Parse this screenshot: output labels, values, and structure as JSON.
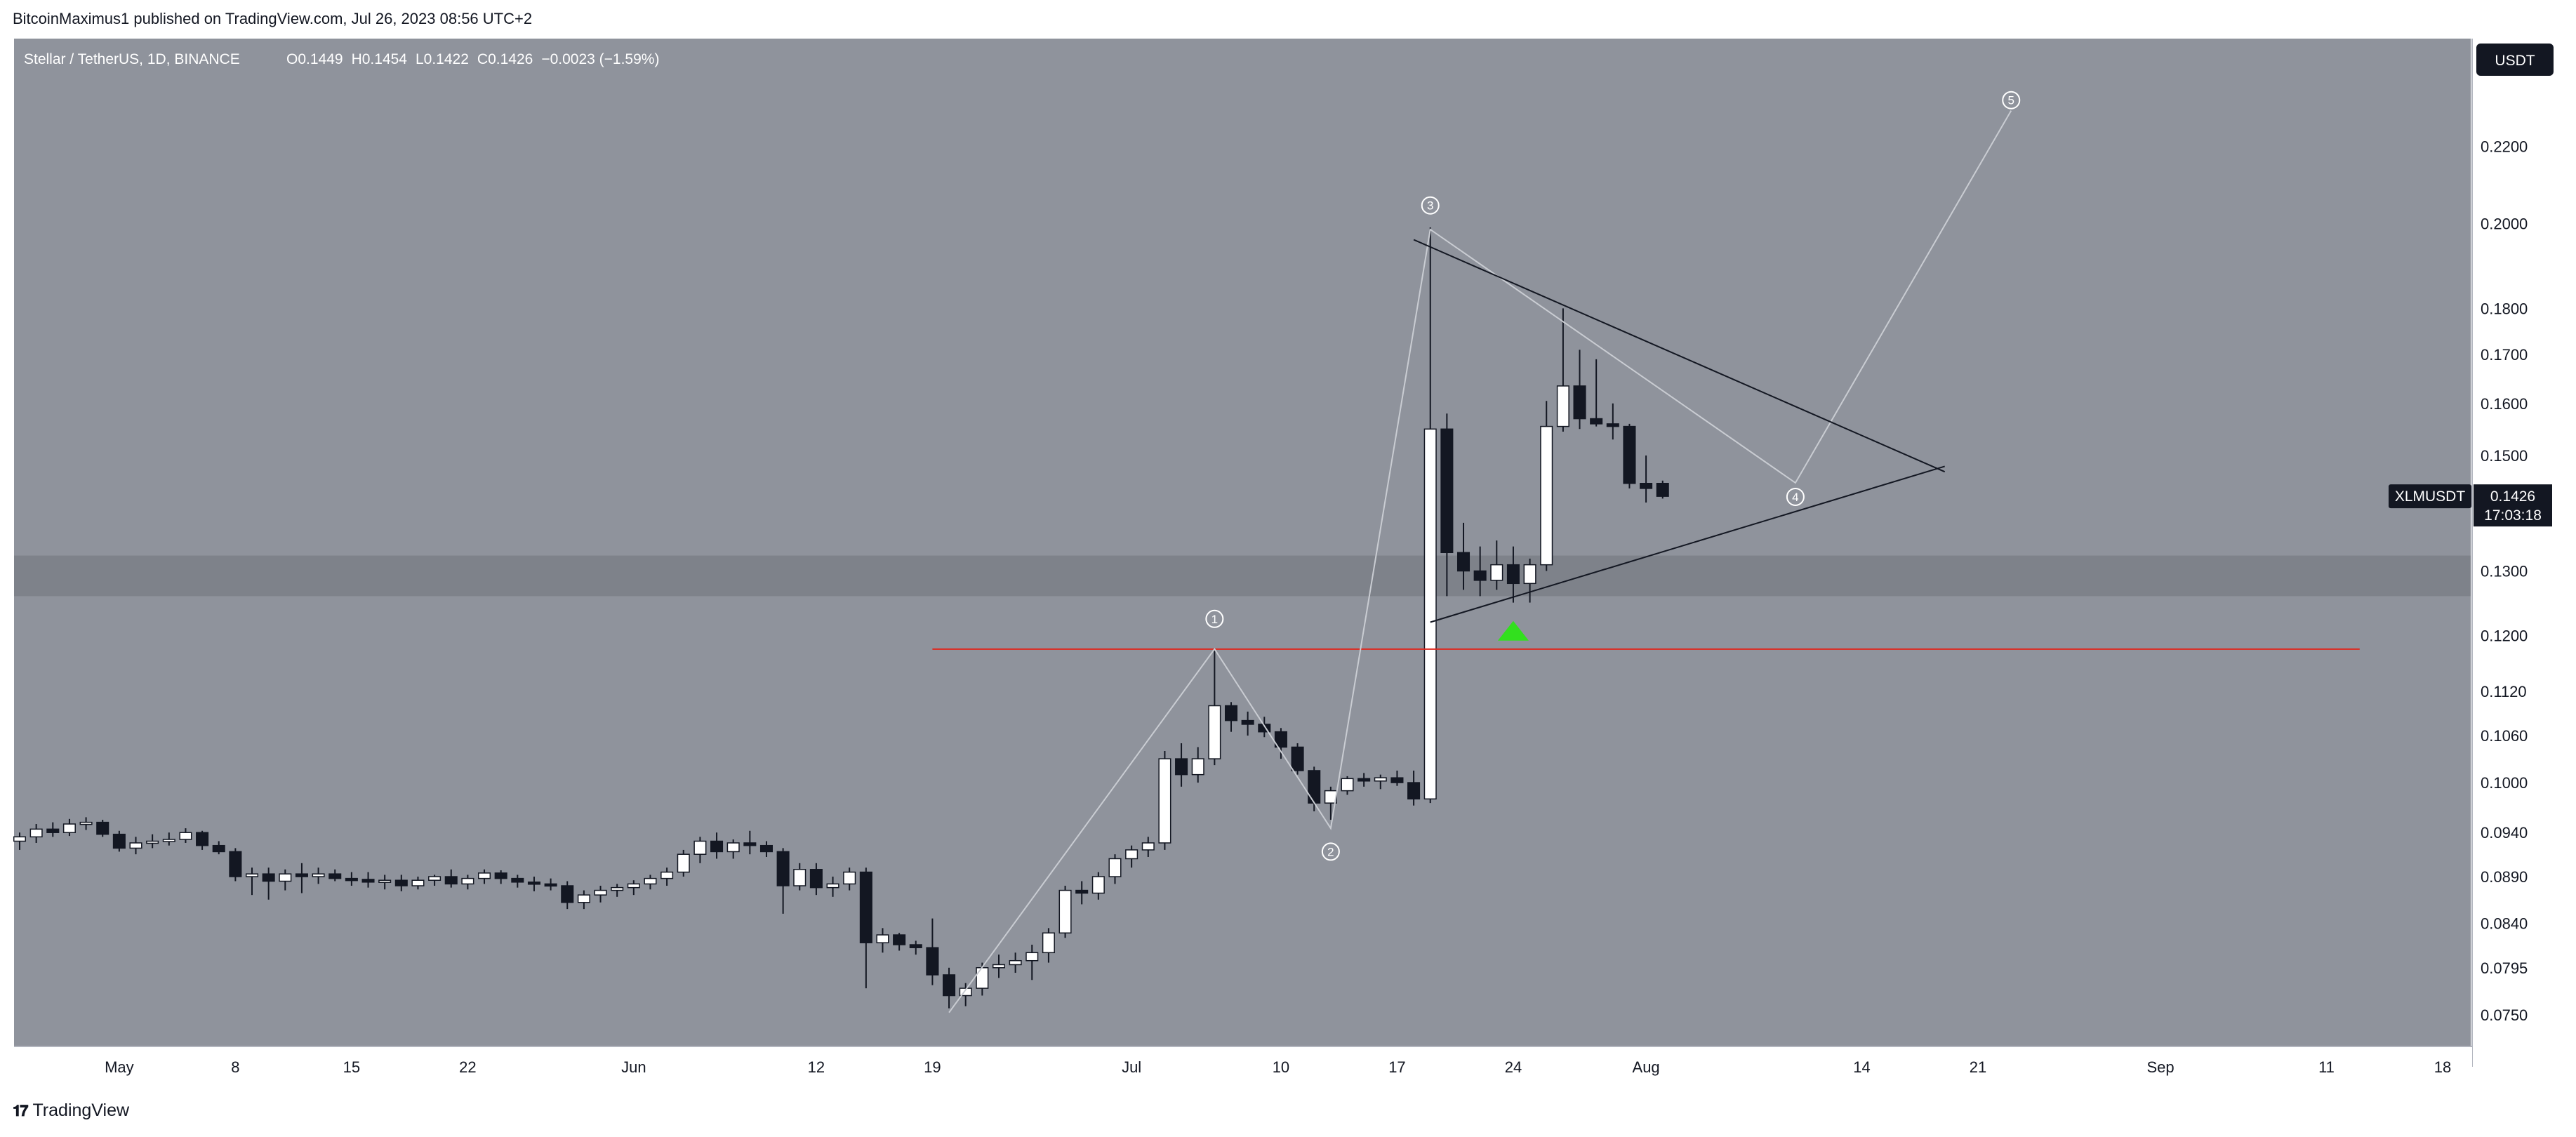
{
  "header": {
    "publisher_line": "BitcoinMaximus1 published on TradingView.com, Jul 26, 2023 08:56 UTC+2"
  },
  "footer": {
    "brand": "TradingView",
    "logo": "tradingview-logo-icon"
  },
  "legend": {
    "symbol": "Stellar / TetherUS, 1D, BINANCE",
    "open_label": "O",
    "open": "0.1449",
    "high_label": "H",
    "high": "0.1454",
    "low_label": "L",
    "low": "0.1422",
    "close_label": "C",
    "close": "0.1426",
    "change": "−0.0023 (−1.59%)"
  },
  "currency_badge": "USDT",
  "price_tag": {
    "symbol": "XLMUSDT",
    "price": "0.1426",
    "countdown": "17:03:18"
  },
  "colors": {
    "background": "#8f939c",
    "support_band": "#7e828a",
    "up_candle": "#ffffff",
    "down_candle": "#131722",
    "resistance_line": "#e0261d",
    "triangle_lines": "#131722",
    "wave_path": "#c9ccd2",
    "arrow": "#32e01e"
  },
  "chart_data": {
    "type": "candlestick",
    "symbol": "XLMUSDT",
    "interval": "1D",
    "exchange": "BINANCE",
    "y_axis": {
      "scale": "log",
      "ticks": [
        "0.2200",
        "0.2000",
        "0.1800",
        "0.1700",
        "0.1600",
        "0.1500",
        "0.1300",
        "0.1200",
        "0.1120",
        "0.1060",
        "0.1000",
        "0.0940",
        "0.0890",
        "0.0840",
        "0.0795",
        "0.0750"
      ],
      "range": [
        0.0735,
        0.245
      ]
    },
    "x_axis": {
      "range": [
        "2023-04-25",
        "2023-09-18"
      ],
      "ticks": [
        {
          "label": "May",
          "date": "2023-05-01"
        },
        {
          "label": "8",
          "date": "2023-05-08"
        },
        {
          "label": "15",
          "date": "2023-05-15"
        },
        {
          "label": "22",
          "date": "2023-05-22"
        },
        {
          "label": "Jun",
          "date": "2023-06-01"
        },
        {
          "label": "12",
          "date": "2023-06-12"
        },
        {
          "label": "19",
          "date": "2023-06-19"
        },
        {
          "label": "Jul",
          "date": "2023-07-01"
        },
        {
          "label": "10",
          "date": "2023-07-10"
        },
        {
          "label": "17",
          "date": "2023-07-17"
        },
        {
          "label": "24",
          "date": "2023-07-24"
        },
        {
          "label": "Aug",
          "date": "2023-08-01"
        },
        {
          "label": "14",
          "date": "2023-08-14"
        },
        {
          "label": "21",
          "date": "2023-08-21"
        },
        {
          "label": "Sep",
          "date": "2023-09-01"
        },
        {
          "label": "11",
          "date": "2023-09-11"
        },
        {
          "label": "18",
          "date": "2023-09-18"
        }
      ]
    },
    "candles": [
      {
        "date": "2023-04-25",
        "o": 0.093,
        "h": 0.094,
        "l": 0.092,
        "c": 0.0935
      },
      {
        "date": "2023-04-26",
        "o": 0.0935,
        "h": 0.095,
        "l": 0.0928,
        "c": 0.0944
      },
      {
        "date": "2023-04-27",
        "o": 0.0944,
        "h": 0.0952,
        "l": 0.0935,
        "c": 0.094
      },
      {
        "date": "2023-04-28",
        "o": 0.094,
        "h": 0.0956,
        "l": 0.0936,
        "c": 0.095
      },
      {
        "date": "2023-04-29",
        "o": 0.095,
        "h": 0.0958,
        "l": 0.0943,
        "c": 0.0952
      },
      {
        "date": "2023-04-30",
        "o": 0.0952,
        "h": 0.0955,
        "l": 0.0935,
        "c": 0.0938
      },
      {
        "date": "2023-05-01",
        "o": 0.0938,
        "h": 0.0942,
        "l": 0.0918,
        "c": 0.0922
      },
      {
        "date": "2023-05-02",
        "o": 0.0922,
        "h": 0.0935,
        "l": 0.0915,
        "c": 0.0928
      },
      {
        "date": "2023-05-03",
        "o": 0.0928,
        "h": 0.0938,
        "l": 0.0922,
        "c": 0.093
      },
      {
        "date": "2023-05-04",
        "o": 0.093,
        "h": 0.094,
        "l": 0.0925,
        "c": 0.0932
      },
      {
        "date": "2023-05-05",
        "o": 0.0932,
        "h": 0.0945,
        "l": 0.0928,
        "c": 0.094
      },
      {
        "date": "2023-05-06",
        "o": 0.094,
        "h": 0.0942,
        "l": 0.092,
        "c": 0.0925
      },
      {
        "date": "2023-05-07",
        "o": 0.0925,
        "h": 0.093,
        "l": 0.0915,
        "c": 0.0918
      },
      {
        "date": "2023-05-08",
        "o": 0.0918,
        "h": 0.0922,
        "l": 0.0885,
        "c": 0.089
      },
      {
        "date": "2023-05-09",
        "o": 0.089,
        "h": 0.09,
        "l": 0.087,
        "c": 0.0893
      },
      {
        "date": "2023-05-10",
        "o": 0.0893,
        "h": 0.09,
        "l": 0.0865,
        "c": 0.0885
      },
      {
        "date": "2023-05-11",
        "o": 0.0885,
        "h": 0.0898,
        "l": 0.0875,
        "c": 0.0893
      },
      {
        "date": "2023-05-12",
        "o": 0.0893,
        "h": 0.0905,
        "l": 0.0872,
        "c": 0.089
      },
      {
        "date": "2023-05-13",
        "o": 0.089,
        "h": 0.09,
        "l": 0.0882,
        "c": 0.0893
      },
      {
        "date": "2023-05-14",
        "o": 0.0893,
        "h": 0.0898,
        "l": 0.0885,
        "c": 0.0888
      },
      {
        "date": "2023-05-15",
        "o": 0.0888,
        "h": 0.0895,
        "l": 0.088,
        "c": 0.0887
      },
      {
        "date": "2023-05-16",
        "o": 0.0887,
        "h": 0.0895,
        "l": 0.0878,
        "c": 0.0884
      },
      {
        "date": "2023-05-17",
        "o": 0.0884,
        "h": 0.0892,
        "l": 0.0876,
        "c": 0.0886
      },
      {
        "date": "2023-05-18",
        "o": 0.0886,
        "h": 0.0892,
        "l": 0.0874,
        "c": 0.088
      },
      {
        "date": "2023-05-19",
        "o": 0.088,
        "h": 0.089,
        "l": 0.0876,
        "c": 0.0886
      },
      {
        "date": "2023-05-20",
        "o": 0.0886,
        "h": 0.0892,
        "l": 0.088,
        "c": 0.089
      },
      {
        "date": "2023-05-21",
        "o": 0.089,
        "h": 0.0898,
        "l": 0.0878,
        "c": 0.0882
      },
      {
        "date": "2023-05-22",
        "o": 0.0882,
        "h": 0.0892,
        "l": 0.0876,
        "c": 0.0888
      },
      {
        "date": "2023-05-23",
        "o": 0.0888,
        "h": 0.0898,
        "l": 0.0882,
        "c": 0.0894
      },
      {
        "date": "2023-05-24",
        "o": 0.0894,
        "h": 0.0897,
        "l": 0.0882,
        "c": 0.0888
      },
      {
        "date": "2023-05-25",
        "o": 0.0888,
        "h": 0.0892,
        "l": 0.0878,
        "c": 0.0884
      },
      {
        "date": "2023-05-26",
        "o": 0.0884,
        "h": 0.089,
        "l": 0.0874,
        "c": 0.0882
      },
      {
        "date": "2023-05-27",
        "o": 0.0882,
        "h": 0.0888,
        "l": 0.0875,
        "c": 0.088
      },
      {
        "date": "2023-05-28",
        "o": 0.088,
        "h": 0.0885,
        "l": 0.0855,
        "c": 0.0862
      },
      {
        "date": "2023-05-29",
        "o": 0.0862,
        "h": 0.0875,
        "l": 0.0855,
        "c": 0.087
      },
      {
        "date": "2023-05-30",
        "o": 0.087,
        "h": 0.088,
        "l": 0.0862,
        "c": 0.0875
      },
      {
        "date": "2023-05-31",
        "o": 0.0875,
        "h": 0.0882,
        "l": 0.0868,
        "c": 0.0878
      },
      {
        "date": "2023-06-01",
        "o": 0.0878,
        "h": 0.0886,
        "l": 0.087,
        "c": 0.0882
      },
      {
        "date": "2023-06-02",
        "o": 0.0882,
        "h": 0.0892,
        "l": 0.0876,
        "c": 0.0888
      },
      {
        "date": "2023-06-03",
        "o": 0.0888,
        "h": 0.09,
        "l": 0.088,
        "c": 0.0895
      },
      {
        "date": "2023-06-04",
        "o": 0.0895,
        "h": 0.092,
        "l": 0.089,
        "c": 0.0915
      },
      {
        "date": "2023-06-05",
        "o": 0.0915,
        "h": 0.0935,
        "l": 0.0905,
        "c": 0.093
      },
      {
        "date": "2023-06-06",
        "o": 0.093,
        "h": 0.094,
        "l": 0.091,
        "c": 0.0918
      },
      {
        "date": "2023-06-07",
        "o": 0.0918,
        "h": 0.0932,
        "l": 0.091,
        "c": 0.0928
      },
      {
        "date": "2023-06-08",
        "o": 0.0928,
        "h": 0.0942,
        "l": 0.0915,
        "c": 0.0925
      },
      {
        "date": "2023-06-09",
        "o": 0.0925,
        "h": 0.093,
        "l": 0.0912,
        "c": 0.0918
      },
      {
        "date": "2023-06-10",
        "o": 0.0918,
        "h": 0.0922,
        "l": 0.085,
        "c": 0.088
      },
      {
        "date": "2023-06-11",
        "o": 0.088,
        "h": 0.0905,
        "l": 0.0875,
        "c": 0.0898
      },
      {
        "date": "2023-06-12",
        "o": 0.0898,
        "h": 0.0905,
        "l": 0.087,
        "c": 0.0878
      },
      {
        "date": "2023-06-13",
        "o": 0.0878,
        "h": 0.089,
        "l": 0.0868,
        "c": 0.0882
      },
      {
        "date": "2023-06-14",
        "o": 0.0882,
        "h": 0.09,
        "l": 0.0875,
        "c": 0.0895
      },
      {
        "date": "2023-06-15",
        "o": 0.0895,
        "h": 0.09,
        "l": 0.0775,
        "c": 0.082
      },
      {
        "date": "2023-06-16",
        "o": 0.082,
        "h": 0.0835,
        "l": 0.081,
        "c": 0.0828
      },
      {
        "date": "2023-06-17",
        "o": 0.0828,
        "h": 0.083,
        "l": 0.0812,
        "c": 0.0818
      },
      {
        "date": "2023-06-18",
        "o": 0.0818,
        "h": 0.0822,
        "l": 0.0808,
        "c": 0.0815
      },
      {
        "date": "2023-06-19",
        "o": 0.0815,
        "h": 0.0845,
        "l": 0.0778,
        "c": 0.0788
      },
      {
        "date": "2023-06-20",
        "o": 0.0788,
        "h": 0.0795,
        "l": 0.0756,
        "c": 0.0768
      },
      {
        "date": "2023-06-21",
        "o": 0.0768,
        "h": 0.078,
        "l": 0.0758,
        "c": 0.0775
      },
      {
        "date": "2023-06-22",
        "o": 0.0775,
        "h": 0.08,
        "l": 0.0768,
        "c": 0.0795
      },
      {
        "date": "2023-06-23",
        "o": 0.0795,
        "h": 0.0808,
        "l": 0.0785,
        "c": 0.0798
      },
      {
        "date": "2023-06-24",
        "o": 0.0798,
        "h": 0.081,
        "l": 0.079,
        "c": 0.0802
      },
      {
        "date": "2023-06-25",
        "o": 0.0802,
        "h": 0.0818,
        "l": 0.0783,
        "c": 0.081
      },
      {
        "date": "2023-06-26",
        "o": 0.081,
        "h": 0.0835,
        "l": 0.08,
        "c": 0.083
      },
      {
        "date": "2023-06-27",
        "o": 0.083,
        "h": 0.088,
        "l": 0.0825,
        "c": 0.0875
      },
      {
        "date": "2023-06-28",
        "o": 0.0875,
        "h": 0.0885,
        "l": 0.086,
        "c": 0.0872
      },
      {
        "date": "2023-06-29",
        "o": 0.0872,
        "h": 0.0895,
        "l": 0.0865,
        "c": 0.089
      },
      {
        "date": "2023-06-30",
        "o": 0.089,
        "h": 0.0915,
        "l": 0.0882,
        "c": 0.091
      },
      {
        "date": "2023-07-01",
        "o": 0.091,
        "h": 0.0925,
        "l": 0.09,
        "c": 0.092
      },
      {
        "date": "2023-07-02",
        "o": 0.092,
        "h": 0.0935,
        "l": 0.0912,
        "c": 0.0928
      },
      {
        "date": "2023-07-03",
        "o": 0.0928,
        "h": 0.104,
        "l": 0.092,
        "c": 0.103
      },
      {
        "date": "2023-07-04",
        "o": 0.103,
        "h": 0.105,
        "l": 0.0995,
        "c": 0.101
      },
      {
        "date": "2023-07-05",
        "o": 0.101,
        "h": 0.1045,
        "l": 0.1,
        "c": 0.103
      },
      {
        "date": "2023-07-06",
        "o": 0.103,
        "h": 0.118,
        "l": 0.1022,
        "c": 0.11
      },
      {
        "date": "2023-07-07",
        "o": 0.11,
        "h": 0.1105,
        "l": 0.1065,
        "c": 0.108
      },
      {
        "date": "2023-07-08",
        "o": 0.108,
        "h": 0.1092,
        "l": 0.106,
        "c": 0.1075
      },
      {
        "date": "2023-07-09",
        "o": 0.1075,
        "h": 0.1085,
        "l": 0.1058,
        "c": 0.1065
      },
      {
        "date": "2023-07-10",
        "o": 0.1065,
        "h": 0.107,
        "l": 0.103,
        "c": 0.1045
      },
      {
        "date": "2023-07-11",
        "o": 0.1045,
        "h": 0.105,
        "l": 0.101,
        "c": 0.1015
      },
      {
        "date": "2023-07-12",
        "o": 0.1015,
        "h": 0.102,
        "l": 0.0965,
        "c": 0.0975
      },
      {
        "date": "2023-07-13",
        "o": 0.0975,
        "h": 0.0995,
        "l": 0.0955,
        "c": 0.099
      },
      {
        "date": "2023-07-14",
        "o": 0.099,
        "h": 0.1008,
        "l": 0.0985,
        "c": 0.1005
      },
      {
        "date": "2023-07-15",
        "o": 0.1005,
        "h": 0.1012,
        "l": 0.0995,
        "c": 0.1002
      },
      {
        "date": "2023-07-16",
        "o": 0.1002,
        "h": 0.101,
        "l": 0.0992,
        "c": 0.1006
      },
      {
        "date": "2023-07-17",
        "o": 0.1006,
        "h": 0.1015,
        "l": 0.0996,
        "c": 0.1
      },
      {
        "date": "2023-07-18",
        "o": 0.1,
        "h": 0.1015,
        "l": 0.0972,
        "c": 0.098
      },
      {
        "date": "2023-07-19",
        "o": 0.098,
        "h": 0.199,
        "l": 0.0975,
        "c": 0.155
      },
      {
        "date": "2023-07-20",
        "o": 0.155,
        "h": 0.158,
        "l": 0.126,
        "c": 0.133
      },
      {
        "date": "2023-07-21",
        "o": 0.133,
        "h": 0.138,
        "l": 0.127,
        "c": 0.13
      },
      {
        "date": "2023-07-22",
        "o": 0.13,
        "h": 0.134,
        "l": 0.126,
        "c": 0.1285
      },
      {
        "date": "2023-07-23",
        "o": 0.1285,
        "h": 0.135,
        "l": 0.127,
        "c": 0.131
      },
      {
        "date": "2023-07-24",
        "o": 0.131,
        "h": 0.134,
        "l": 0.125,
        "c": 0.128
      },
      {
        "date": "2023-07-25",
        "o": 0.128,
        "h": 0.132,
        "l": 0.125,
        "c": 0.131
      },
      {
        "date": "2023-07-26",
        "o": 0.131,
        "h": 0.1605,
        "l": 0.13,
        "c": 0.1555
      },
      {
        "date": "2023-07-27",
        "o": 0.1555,
        "h": 0.18,
        "l": 0.1545,
        "c": 0.1635
      },
      {
        "date": "2023-07-28",
        "o": 0.1635,
        "h": 0.171,
        "l": 0.155,
        "c": 0.157
      },
      {
        "date": "2023-07-29",
        "o": 0.157,
        "h": 0.169,
        "l": 0.1555,
        "c": 0.156
      },
      {
        "date": "2023-07-30",
        "o": 0.156,
        "h": 0.16,
        "l": 0.153,
        "c": 0.1555
      },
      {
        "date": "2023-07-31",
        "o": 0.1555,
        "h": 0.156,
        "l": 0.144,
        "c": 0.1449
      },
      {
        "date": "2023-08-01",
        "o": 0.1449,
        "h": 0.15,
        "l": 0.1415,
        "c": 0.144
      },
      {
        "date": "2023-08-02",
        "o": 0.1449,
        "h": 0.1454,
        "l": 0.1422,
        "c": 0.1426
      }
    ],
    "annotations": {
      "wave_labels": [
        {
          "label": "1",
          "date": "2023-07-06",
          "price": 0.1225
        },
        {
          "label": "2",
          "date": "2023-07-13",
          "price": 0.0918
        },
        {
          "label": "3",
          "date": "2023-07-19",
          "price": 0.2045
        },
        {
          "label": "4",
          "date": "2023-08-10",
          "price": 0.1425
        },
        {
          "label": "5",
          "date": "2023-08-23",
          "price": 0.233
        }
      ],
      "wave_path": [
        {
          "date": "2023-06-20",
          "price": 0.0752
        },
        {
          "date": "2023-07-06",
          "price": 0.118
        },
        {
          "date": "2023-07-13",
          "price": 0.0945
        },
        {
          "date": "2023-07-19",
          "price": 0.1985
        },
        {
          "date": "2023-08-10",
          "price": 0.145
        },
        {
          "date": "2023-08-23",
          "price": 0.23
        }
      ],
      "triangle_upper": [
        {
          "date": "2023-07-18",
          "price": 0.196
        },
        {
          "date": "2023-08-19",
          "price": 0.147
        }
      ],
      "triangle_lower": [
        {
          "date": "2023-07-19",
          "price": 0.122
        },
        {
          "date": "2023-08-19",
          "price": 0.148
        }
      ],
      "resistance_level": {
        "price": 0.118,
        "from": "2023-06-19",
        "to": "2023-09-13"
      },
      "support_band": {
        "low": 0.126,
        "high": 0.1325
      },
      "up_arrow": {
        "date": "2023-07-24",
        "price": 0.1205
      }
    }
  }
}
